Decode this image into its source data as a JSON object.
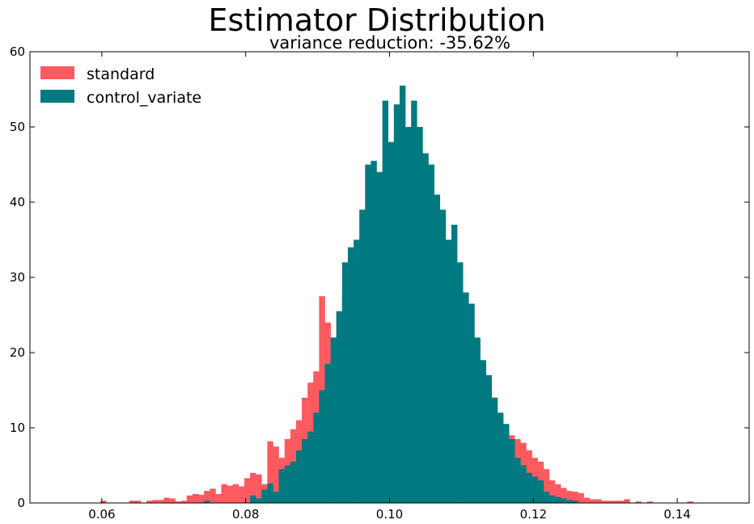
{
  "chart_data": {
    "type": "bar",
    "title": "Estimator Distribution",
    "subtitle": "variance reduction: -35.62%",
    "xlabel": "",
    "ylabel": "",
    "xlim": [
      0.05,
      0.15
    ],
    "ylim": [
      0,
      60
    ],
    "x_ticks": [
      "0.06",
      "0.08",
      "0.10",
      "0.12",
      "0.14"
    ],
    "y_ticks": [
      "0",
      "10",
      "20",
      "30",
      "40",
      "50",
      "60"
    ],
    "grid": false,
    "legend_position": "top-left",
    "bin_width": 0.0008,
    "series": [
      {
        "name": "standard",
        "color": "#ff5a5f",
        "bins": [
          [
            0.0598,
            0.3
          ],
          [
            0.0638,
            0.3
          ],
          [
            0.0646,
            0.3
          ],
          [
            0.0662,
            0.3
          ],
          [
            0.067,
            0.4
          ],
          [
            0.0678,
            0.4
          ],
          [
            0.0686,
            0.7
          ],
          [
            0.0694,
            0.6
          ],
          [
            0.0702,
            0.2
          ],
          [
            0.071,
            0.3
          ],
          [
            0.0718,
            1.0
          ],
          [
            0.0726,
            1.2
          ],
          [
            0.0734,
            1.1
          ],
          [
            0.0742,
            1.6
          ],
          [
            0.075,
            1.9
          ],
          [
            0.0758,
            1.2
          ],
          [
            0.0766,
            2.5
          ],
          [
            0.0774,
            2.3
          ],
          [
            0.0782,
            2.5
          ],
          [
            0.079,
            2.2
          ],
          [
            0.0798,
            3.3
          ],
          [
            0.0806,
            4.0
          ],
          [
            0.0814,
            3.8
          ],
          [
            0.0822,
            2.5
          ],
          [
            0.083,
            8.2
          ],
          [
            0.0838,
            7.5
          ],
          [
            0.0846,
            6.0
          ],
          [
            0.0854,
            8.5
          ],
          [
            0.0862,
            9.8
          ],
          [
            0.087,
            11.0
          ],
          [
            0.0878,
            14.0
          ],
          [
            0.0886,
            16.0
          ],
          [
            0.0894,
            17.5
          ],
          [
            0.0902,
            27.5
          ],
          [
            0.091,
            24.0
          ],
          [
            0.0918,
            22.0
          ],
          [
            0.0926,
            25.0
          ],
          [
            0.0934,
            28.0
          ],
          [
            0.0942,
            30.0
          ],
          [
            0.095,
            32.0
          ],
          [
            0.0958,
            35.0
          ],
          [
            0.0966,
            38.0
          ],
          [
            0.0974,
            42.0
          ],
          [
            0.0982,
            44.0
          ],
          [
            0.099,
            45.0
          ],
          [
            0.0998,
            47.0
          ],
          [
            0.1006,
            49.0
          ],
          [
            0.1014,
            48.0
          ],
          [
            0.1022,
            46.5
          ],
          [
            0.103,
            45.0
          ],
          [
            0.1038,
            44.0
          ],
          [
            0.1046,
            42.0
          ],
          [
            0.1054,
            40.0
          ],
          [
            0.1062,
            37.0
          ],
          [
            0.107,
            34.0
          ],
          [
            0.1078,
            31.0
          ],
          [
            0.1086,
            30.0
          ],
          [
            0.1094,
            27.0
          ],
          [
            0.1102,
            24.0
          ],
          [
            0.111,
            22.0
          ],
          [
            0.1118,
            21.0
          ],
          [
            0.1126,
            18.5
          ],
          [
            0.1134,
            15.5
          ],
          [
            0.1142,
            14.0
          ],
          [
            0.115,
            12.0
          ],
          [
            0.1158,
            10.5
          ],
          [
            0.1166,
            9.0
          ],
          [
            0.1174,
            8.5
          ],
          [
            0.1182,
            8.0
          ],
          [
            0.119,
            7.0
          ],
          [
            0.1198,
            6.0
          ],
          [
            0.1206,
            5.5
          ],
          [
            0.1214,
            4.5
          ],
          [
            0.1222,
            3.0
          ],
          [
            0.123,
            2.5
          ],
          [
            0.1238,
            2.0
          ],
          [
            0.1246,
            1.6
          ],
          [
            0.1254,
            1.5
          ],
          [
            0.1262,
            1.3
          ],
          [
            0.127,
            0.7
          ],
          [
            0.1278,
            0.5
          ],
          [
            0.1286,
            0.5
          ],
          [
            0.1294,
            0.3
          ],
          [
            0.1302,
            0.3
          ],
          [
            0.131,
            0.3
          ],
          [
            0.1318,
            0.3
          ],
          [
            0.1326,
            0.5
          ],
          [
            0.1342,
            0.2
          ],
          [
            0.1358,
            0.2
          ],
          [
            0.1414,
            0.2
          ]
        ]
      },
      {
        "name": "control_variate",
        "color": "#007a80",
        "bins": [
          [
            0.0742,
            0.3
          ],
          [
            0.0806,
            1.0
          ],
          [
            0.0814,
            0.6
          ],
          [
            0.0822,
            1.8
          ],
          [
            0.083,
            2.6
          ],
          [
            0.0838,
            1.5
          ],
          [
            0.0846,
            4.5
          ],
          [
            0.0854,
            5.0
          ],
          [
            0.0862,
            5.5
          ],
          [
            0.087,
            7.0
          ],
          [
            0.0878,
            8.5
          ],
          [
            0.0886,
            9.5
          ],
          [
            0.0894,
            12.0
          ],
          [
            0.0902,
            15.0
          ],
          [
            0.091,
            18.5
          ],
          [
            0.0918,
            22.0
          ],
          [
            0.0926,
            25.5
          ],
          [
            0.0934,
            32.0
          ],
          [
            0.0942,
            34.0
          ],
          [
            0.095,
            35.0
          ],
          [
            0.0958,
            39.0
          ],
          [
            0.0966,
            45.0
          ],
          [
            0.0974,
            45.5
          ],
          [
            0.0982,
            44.0
          ],
          [
            0.099,
            53.5
          ],
          [
            0.0998,
            48.0
          ],
          [
            0.1006,
            53.0
          ],
          [
            0.1014,
            55.5
          ],
          [
            0.1022,
            50.0
          ],
          [
            0.103,
            53.5
          ],
          [
            0.1038,
            50.0
          ],
          [
            0.1046,
            46.5
          ],
          [
            0.1054,
            45.0
          ],
          [
            0.1062,
            41.0
          ],
          [
            0.107,
            39.0
          ],
          [
            0.1078,
            35.0
          ],
          [
            0.1086,
            37.0
          ],
          [
            0.1094,
            32.0
          ],
          [
            0.1102,
            28.0
          ],
          [
            0.111,
            26.5
          ],
          [
            0.1118,
            22.0
          ],
          [
            0.1126,
            19.0
          ],
          [
            0.1134,
            17.0
          ],
          [
            0.1142,
            14.0
          ],
          [
            0.115,
            12.0
          ],
          [
            0.1158,
            10.5
          ],
          [
            0.1166,
            8.5
          ],
          [
            0.1174,
            6.0
          ],
          [
            0.1182,
            5.0
          ],
          [
            0.119,
            4.0
          ],
          [
            0.1198,
            3.5
          ],
          [
            0.1206,
            3.0
          ],
          [
            0.1214,
            1.5
          ],
          [
            0.1222,
            1.0
          ],
          [
            0.123,
            0.8
          ],
          [
            0.1238,
            0.6
          ],
          [
            0.1246,
            0.4
          ],
          [
            0.1254,
            0.3
          ]
        ]
      }
    ]
  }
}
